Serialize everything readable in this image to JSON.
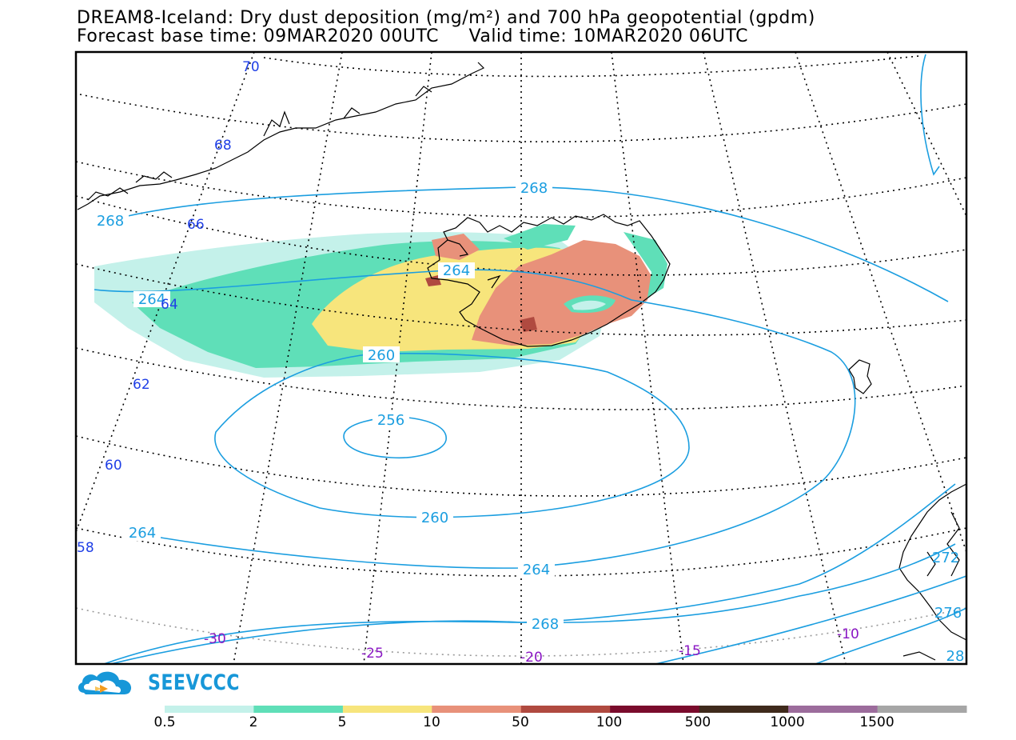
{
  "title": {
    "line1": "DREAM8-Iceland: Dry dust deposition (mg/m²) and 700 hPa geopotential (gpdm)",
    "line2": "Forecast base time: 09MAR2020 00UTC     Valid time: 10MAR2020 06UTC"
  },
  "map": {
    "latitude_labels": [
      "70",
      "68",
      "66",
      "64",
      "62",
      "60",
      "58"
    ],
    "longitude_labels": [
      "-30",
      "-25",
      "-20",
      "-15",
      "-10"
    ],
    "contour_labels": [
      "268",
      "268",
      "264",
      "264",
      "260",
      "256",
      "260",
      "264",
      "264",
      "268",
      "272",
      "276",
      "28"
    ]
  },
  "colorbar": {
    "colors": [
      "#c4f1ea",
      "#5fdfb8",
      "#f7e57c",
      "#e8917a",
      "#b04a40",
      "#7a0b2c",
      "#3f2a1c",
      "#9c6c9c",
      "#a6a6a6"
    ],
    "ticks": [
      "0.5",
      "2",
      "5",
      "10",
      "50",
      "100",
      "500",
      "1000",
      "1500"
    ]
  },
  "logo": {
    "text": "SEEVCCC"
  }
}
